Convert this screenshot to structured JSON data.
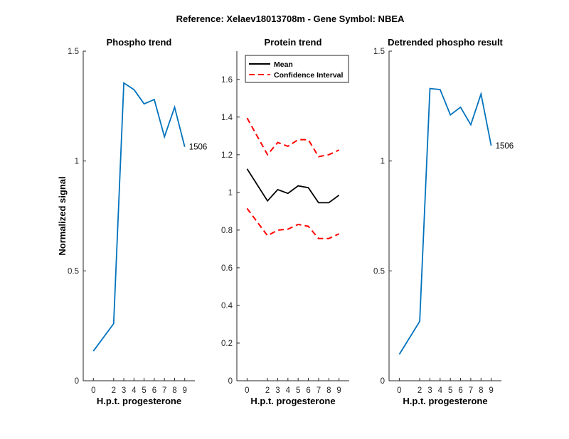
{
  "figure": {
    "suptitle": "Reference:  Xelaev18013708m - Gene Symbol:  NBEA"
  },
  "chart_data": [
    {
      "type": "line",
      "title": "Phospho trend",
      "xlabel": "H.p.t. progesterone",
      "ylabel": "Normalized signal",
      "x": [
        0,
        2,
        3,
        4,
        5,
        6,
        7,
        8,
        9
      ],
      "xticks": [
        "0",
        "2",
        "3",
        "4",
        "5",
        "6",
        "7",
        "8",
        "9"
      ],
      "ylim": [
        0,
        1.5
      ],
      "yticks": [
        "0",
        "0.5",
        "1",
        "1.5"
      ],
      "grid": false,
      "series": [
        {
          "values": [
            0.135,
            0.26,
            1.355,
            1.325,
            1.26,
            1.28,
            1.11,
            1.245,
            1.065
          ],
          "color": "#0072BD",
          "style": "solid"
        }
      ],
      "annotations": [
        {
          "text": "1506",
          "x": 9,
          "y": 1.065
        }
      ]
    },
    {
      "type": "line",
      "title": "Protein trend",
      "xlabel": "H.p.t. progesterone",
      "ylabel": "",
      "x": [
        0,
        2,
        3,
        4,
        5,
        6,
        7,
        8,
        9
      ],
      "xticks": [
        "0",
        "2",
        "3",
        "4",
        "5",
        "6",
        "7",
        "8",
        "9"
      ],
      "ylim": [
        0,
        1.75
      ],
      "yticks": [
        "0",
        "0.2",
        "0.4",
        "0.6",
        "0.8",
        "1",
        "1.2",
        "1.4",
        "1.6"
      ],
      "grid": false,
      "legend": {
        "placement": "top-left",
        "entries": [
          "Mean",
          "Confidence Interval"
        ]
      },
      "series": [
        {
          "name": "Mean",
          "values": [
            1.125,
            0.955,
            1.015,
            0.995,
            1.035,
            1.025,
            0.945,
            0.945,
            0.985
          ],
          "color": "#000000",
          "style": "solid"
        },
        {
          "name": "Confidence Interval",
          "values": [
            1.395,
            1.2,
            1.265,
            1.245,
            1.28,
            1.28,
            1.19,
            1.2,
            1.225
          ],
          "color": "#FF0000",
          "style": "dashed"
        },
        {
          "name": "",
          "values": [
            0.915,
            0.77,
            0.8,
            0.805,
            0.83,
            0.82,
            0.755,
            0.755,
            0.78
          ],
          "color": "#FF0000",
          "style": "dashed"
        }
      ],
      "annotations": []
    },
    {
      "type": "line",
      "title": "Detrended phospho result",
      "xlabel": "H.p.t. progesterone",
      "ylabel": "",
      "x": [
        0,
        2,
        3,
        4,
        5,
        6,
        7,
        8,
        9
      ],
      "xticks": [
        "0",
        "2",
        "3",
        "4",
        "5",
        "6",
        "7",
        "8",
        "9"
      ],
      "ylim": [
        0,
        1.5
      ],
      "yticks": [
        "0",
        "0.5",
        "1",
        "1.5"
      ],
      "grid": false,
      "series": [
        {
          "values": [
            0.12,
            0.27,
            1.33,
            1.325,
            1.21,
            1.245,
            1.165,
            1.305,
            1.07
          ],
          "color": "#0072BD",
          "style": "solid"
        }
      ],
      "annotations": [
        {
          "text": "1506",
          "x": 9,
          "y": 1.07
        }
      ]
    }
  ]
}
